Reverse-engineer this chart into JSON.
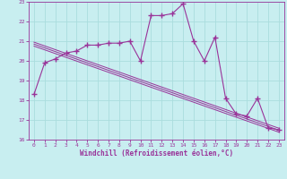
{
  "xlabel": "Windchill (Refroidissement éolien,°C)",
  "x_values": [
    0,
    1,
    2,
    3,
    4,
    5,
    6,
    7,
    8,
    9,
    10,
    11,
    12,
    13,
    14,
    15,
    16,
    17,
    18,
    19,
    20,
    21,
    22,
    23
  ],
  "y_main": [
    18.3,
    19.9,
    20.1,
    20.4,
    20.5,
    20.8,
    20.8,
    20.9,
    20.9,
    21.0,
    20.0,
    22.3,
    22.3,
    22.4,
    22.9,
    21.0,
    20.0,
    21.2,
    18.1,
    17.3,
    17.2,
    18.1,
    16.6,
    16.5
  ],
  "y_reg1": [
    20.75,
    20.56,
    20.37,
    20.18,
    19.99,
    19.8,
    19.61,
    19.42,
    19.23,
    19.04,
    18.85,
    18.66,
    18.47,
    18.28,
    18.09,
    17.9,
    17.71,
    17.52,
    17.33,
    17.14,
    16.95,
    16.76,
    16.57,
    16.38
  ],
  "y_reg2": [
    20.85,
    20.66,
    20.47,
    20.28,
    20.09,
    19.9,
    19.71,
    19.52,
    19.33,
    19.14,
    18.95,
    18.76,
    18.57,
    18.38,
    18.19,
    18.0,
    17.81,
    17.62,
    17.43,
    17.24,
    17.05,
    16.86,
    16.67,
    16.48
  ],
  "y_reg3": [
    20.95,
    20.76,
    20.57,
    20.38,
    20.19,
    20.0,
    19.81,
    19.62,
    19.43,
    19.24,
    19.05,
    18.86,
    18.67,
    18.48,
    18.29,
    18.1,
    17.91,
    17.72,
    17.53,
    17.34,
    17.15,
    16.96,
    16.77,
    16.58
  ],
  "line_color": "#993399",
  "bg_color": "#c8eef0",
  "grid_color": "#aadddd",
  "ylim": [
    16,
    23
  ],
  "xlim": [
    -0.5,
    23.5
  ],
  "yticks": [
    16,
    17,
    18,
    19,
    20,
    21,
    22,
    23
  ],
  "xticks": [
    0,
    1,
    2,
    3,
    4,
    5,
    6,
    7,
    8,
    9,
    10,
    11,
    12,
    13,
    14,
    15,
    16,
    17,
    18,
    19,
    20,
    21,
    22,
    23
  ]
}
